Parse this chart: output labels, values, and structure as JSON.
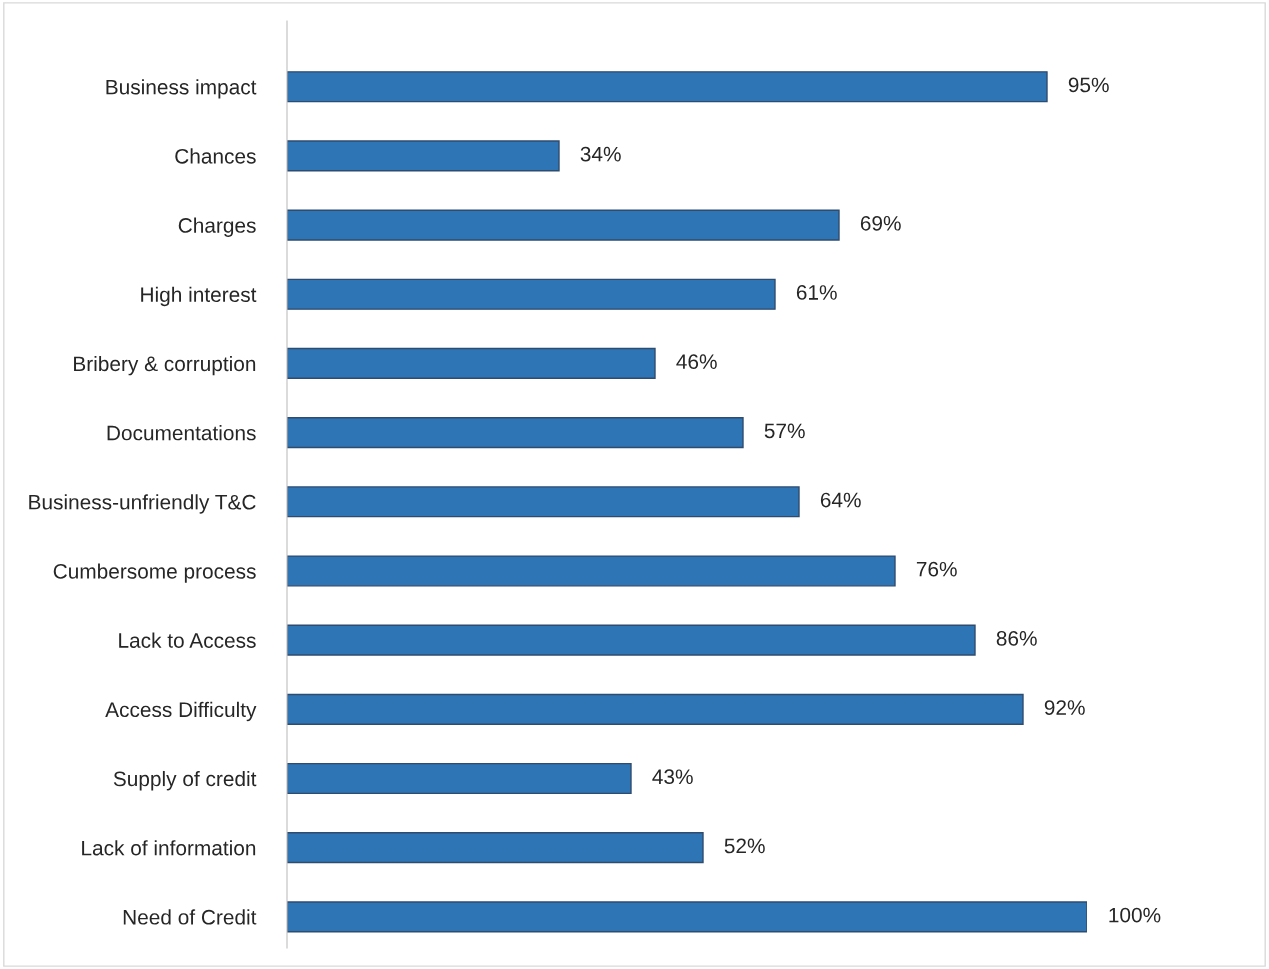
{
  "chart_data": {
    "type": "bar",
    "orientation": "horizontal",
    "categories": [
      "Business impact",
      "Chances",
      "Charges",
      "High interest",
      "Bribery & corruption",
      "Documentations",
      "Business-unfriendly T&C",
      "Cumbersome process",
      "Lack to Access",
      "Access Difficulty",
      "Supply of credit",
      "Lack of information",
      "Need of Credit"
    ],
    "values": [
      95,
      34,
      69,
      61,
      46,
      57,
      64,
      76,
      86,
      92,
      43,
      52,
      100
    ],
    "value_labels": [
      "95%",
      "34%",
      "69%",
      "61%",
      "46%",
      "57%",
      "64%",
      "76%",
      "86%",
      "92%",
      "43%",
      "52%",
      "100%"
    ],
    "color": "#2e75b6",
    "grid": false,
    "legend": false
  }
}
